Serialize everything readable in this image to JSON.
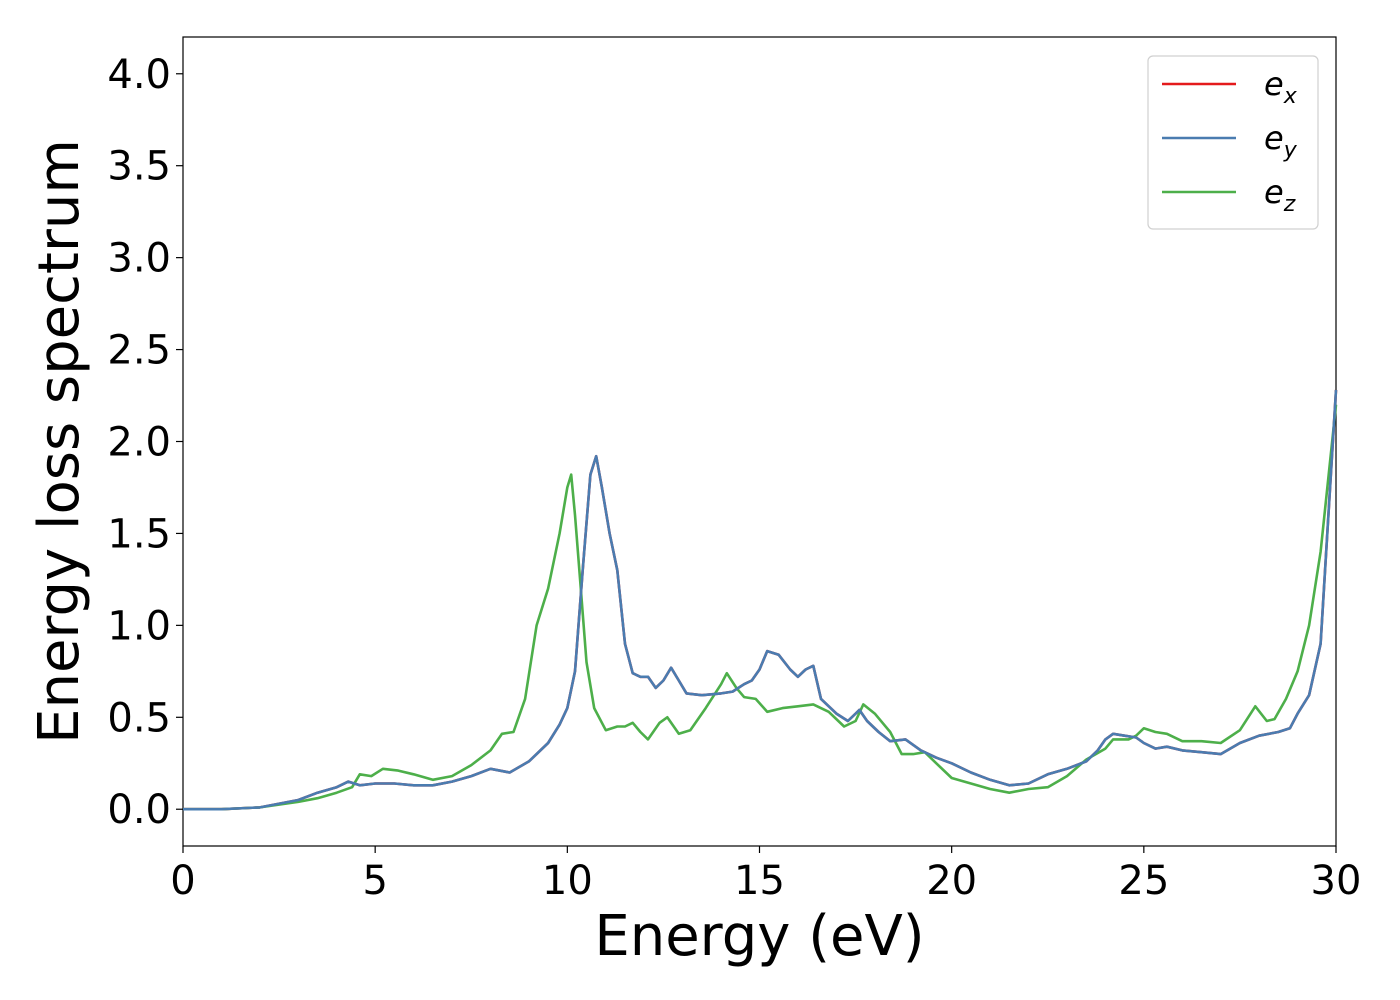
{
  "chart_data": {
    "type": "line",
    "title": "",
    "xlabel": "Energy (eV)",
    "ylabel": "Energy loss spectrum",
    "xlim": [
      0,
      30
    ],
    "ylim": [
      -0.2,
      4.2
    ],
    "xticks": [
      0,
      5,
      10,
      15,
      20,
      25,
      30
    ],
    "yticks": [
      0.0,
      0.5,
      1.0,
      1.5,
      2.0,
      2.5,
      3.0,
      3.5,
      4.0
    ],
    "ytick_labels": [
      "0.0",
      "0.5",
      "1.0",
      "1.5",
      "2.0",
      "2.5",
      "3.0",
      "3.5",
      "4.0"
    ],
    "grid": false,
    "legend_position": "top-right",
    "series": [
      {
        "name": "e",
        "subscript": "x",
        "color": "#e41a1c",
        "x": [
          0,
          1,
          2,
          3,
          3.5,
          4,
          4.3,
          4.6,
          5,
          5.5,
          6,
          6.5,
          7,
          7.5,
          8,
          8.5,
          9,
          9.5,
          9.8,
          10,
          10.2,
          10.4,
          10.6,
          10.75,
          10.9,
          11.1,
          11.3,
          11.5,
          11.7,
          11.9,
          12.1,
          12.3,
          12.5,
          12.7,
          12.9,
          13.1,
          13.5,
          14,
          14.3,
          14.6,
          14.8,
          15,
          15.2,
          15.5,
          15.8,
          16,
          16.2,
          16.4,
          16.6,
          17,
          17.3,
          17.6,
          17.8,
          18.1,
          18.4,
          18.8,
          19.2,
          19.6,
          20,
          20.5,
          21,
          21.5,
          22,
          22.5,
          23,
          23.5,
          23.8,
          24,
          24.2,
          24.5,
          24.8,
          25,
          25.3,
          25.6,
          26,
          26.5,
          27,
          27.5,
          28,
          28.5,
          28.8,
          29,
          29.3,
          29.6,
          30
        ],
        "y": [
          0.0,
          0.0,
          0.01,
          0.05,
          0.09,
          0.12,
          0.15,
          0.13,
          0.14,
          0.14,
          0.13,
          0.13,
          0.15,
          0.18,
          0.22,
          0.2,
          0.26,
          0.36,
          0.46,
          0.55,
          0.75,
          1.3,
          1.82,
          1.92,
          1.75,
          1.5,
          1.3,
          0.9,
          0.74,
          0.72,
          0.72,
          0.66,
          0.7,
          0.77,
          0.7,
          0.63,
          0.62,
          0.63,
          0.64,
          0.68,
          0.7,
          0.76,
          0.86,
          0.84,
          0.76,
          0.72,
          0.76,
          0.78,
          0.6,
          0.52,
          0.48,
          0.54,
          0.48,
          0.42,
          0.37,
          0.38,
          0.32,
          0.28,
          0.25,
          0.2,
          0.16,
          0.13,
          0.14,
          0.19,
          0.22,
          0.26,
          0.32,
          0.38,
          0.41,
          0.4,
          0.39,
          0.36,
          0.33,
          0.34,
          0.32,
          0.31,
          0.3,
          0.36,
          0.4,
          0.42,
          0.44,
          0.52,
          0.62,
          0.9,
          2.28
        ]
      },
      {
        "name": "e",
        "subscript": "y",
        "color": "#4a7cb0",
        "x": [
          0,
          1,
          2,
          3,
          3.5,
          4,
          4.3,
          4.6,
          5,
          5.5,
          6,
          6.5,
          7,
          7.5,
          8,
          8.5,
          9,
          9.5,
          9.8,
          10,
          10.2,
          10.4,
          10.6,
          10.75,
          10.9,
          11.1,
          11.3,
          11.5,
          11.7,
          11.9,
          12.1,
          12.3,
          12.5,
          12.7,
          12.9,
          13.1,
          13.5,
          14,
          14.3,
          14.6,
          14.8,
          15,
          15.2,
          15.5,
          15.8,
          16,
          16.2,
          16.4,
          16.6,
          17,
          17.3,
          17.6,
          17.8,
          18.1,
          18.4,
          18.8,
          19.2,
          19.6,
          20,
          20.5,
          21,
          21.5,
          22,
          22.5,
          23,
          23.5,
          23.8,
          24,
          24.2,
          24.5,
          24.8,
          25,
          25.3,
          25.6,
          26,
          26.5,
          27,
          27.5,
          28,
          28.5,
          28.8,
          29,
          29.3,
          29.6,
          30
        ],
        "y": [
          0.0,
          0.0,
          0.01,
          0.05,
          0.09,
          0.12,
          0.15,
          0.13,
          0.14,
          0.14,
          0.13,
          0.13,
          0.15,
          0.18,
          0.22,
          0.2,
          0.26,
          0.36,
          0.46,
          0.55,
          0.75,
          1.3,
          1.82,
          1.92,
          1.75,
          1.5,
          1.3,
          0.9,
          0.74,
          0.72,
          0.72,
          0.66,
          0.7,
          0.77,
          0.7,
          0.63,
          0.62,
          0.63,
          0.64,
          0.68,
          0.7,
          0.76,
          0.86,
          0.84,
          0.76,
          0.72,
          0.76,
          0.78,
          0.6,
          0.52,
          0.48,
          0.54,
          0.48,
          0.42,
          0.37,
          0.38,
          0.32,
          0.28,
          0.25,
          0.2,
          0.16,
          0.13,
          0.14,
          0.19,
          0.22,
          0.26,
          0.32,
          0.38,
          0.41,
          0.4,
          0.39,
          0.36,
          0.33,
          0.34,
          0.32,
          0.31,
          0.3,
          0.36,
          0.4,
          0.42,
          0.44,
          0.52,
          0.62,
          0.9,
          2.28
        ]
      },
      {
        "name": "e",
        "subscript": "z",
        "color": "#4daf4a",
        "x": [
          0,
          1,
          2,
          3,
          3.5,
          4,
          4.4,
          4.6,
          4.9,
          5.2,
          5.6,
          6,
          6.5,
          7,
          7.5,
          8,
          8.3,
          8.6,
          8.9,
          9.2,
          9.5,
          9.8,
          10,
          10.1,
          10.2,
          10.35,
          10.5,
          10.7,
          11,
          11.3,
          11.5,
          11.7,
          11.9,
          12.1,
          12.4,
          12.6,
          12.9,
          13.2,
          13.6,
          14,
          14.15,
          14.4,
          14.6,
          14.9,
          15.2,
          15.6,
          16,
          16.4,
          16.8,
          17.2,
          17.5,
          17.7,
          18,
          18.4,
          18.7,
          19,
          19.3,
          19.6,
          20,
          20.5,
          21,
          21.5,
          22,
          22.5,
          23,
          23.5,
          24,
          24.2,
          24.6,
          24.8,
          25,
          25.3,
          25.6,
          26,
          26.5,
          27,
          27.5,
          27.9,
          28.2,
          28.4,
          28.7,
          29,
          29.3,
          29.6,
          30
        ],
        "y": [
          0.0,
          0.0,
          0.01,
          0.04,
          0.06,
          0.09,
          0.12,
          0.19,
          0.18,
          0.22,
          0.21,
          0.19,
          0.16,
          0.18,
          0.24,
          0.32,
          0.41,
          0.42,
          0.6,
          1.0,
          1.2,
          1.5,
          1.75,
          1.82,
          1.6,
          1.2,
          0.8,
          0.55,
          0.43,
          0.45,
          0.45,
          0.47,
          0.42,
          0.38,
          0.47,
          0.5,
          0.41,
          0.43,
          0.55,
          0.68,
          0.74,
          0.66,
          0.61,
          0.6,
          0.53,
          0.55,
          0.56,
          0.57,
          0.53,
          0.45,
          0.48,
          0.57,
          0.52,
          0.42,
          0.3,
          0.3,
          0.31,
          0.25,
          0.17,
          0.14,
          0.11,
          0.09,
          0.11,
          0.12,
          0.18,
          0.27,
          0.33,
          0.38,
          0.38,
          0.4,
          0.44,
          0.42,
          0.41,
          0.37,
          0.37,
          0.36,
          0.43,
          0.56,
          0.48,
          0.49,
          0.6,
          0.75,
          1.0,
          1.4,
          2.2
        ]
      }
    ]
  }
}
